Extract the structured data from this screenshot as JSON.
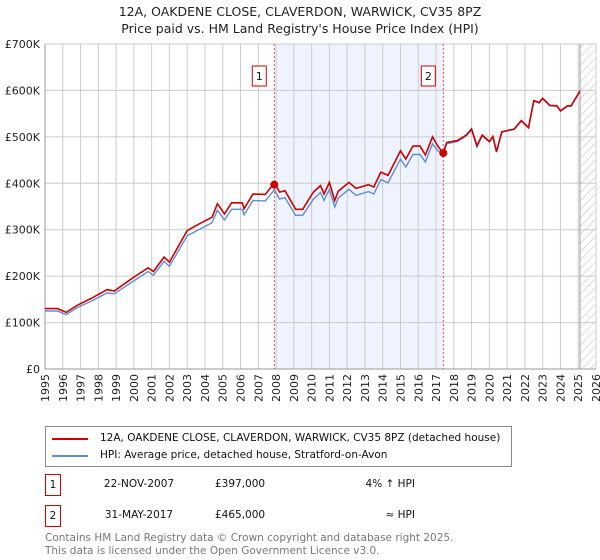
{
  "chart_data": {
    "type": "line",
    "title": "12A, OAKDENE CLOSE, CLAVERDON, WARWICK, CV35 8PZ",
    "subtitle": "Price paid vs. HM Land Registry's House Price Index (HPI)",
    "xlim": [
      1995,
      2026
    ],
    "ylim": [
      0,
      700000
    ],
    "y_ticks": [
      0,
      100000,
      200000,
      300000,
      400000,
      500000,
      600000,
      700000
    ],
    "y_tick_labels": [
      "£0",
      "£100K",
      "£200K",
      "£300K",
      "£400K",
      "£500K",
      "£600K",
      "£700K"
    ],
    "x_ticks": [
      1995,
      1996,
      1997,
      1998,
      1999,
      2000,
      2001,
      2002,
      2003,
      2004,
      2005,
      2006,
      2007,
      2008,
      2009,
      2010,
      2011,
      2012,
      2013,
      2014,
      2015,
      2016,
      2017,
      2018,
      2019,
      2020,
      2021,
      2022,
      2023,
      2024,
      2025,
      2026
    ],
    "grid": true,
    "shaded_period": [
      2007.9,
      2017.41
    ],
    "forecast_hatch_from": 2025.1,
    "colors": {
      "property": "#cc0000",
      "hpi": "#5b8fd4",
      "shade": "#eef3fd",
      "marker_line": "#e05050"
    },
    "x": [
      1995.0,
      1995.7,
      1996.2,
      1996.8,
      1997.6,
      1998.5,
      1998.9,
      2000.0,
      2000.8,
      2001.1,
      2001.7,
      2002.0,
      2003.0,
      2003.7,
      2004.4,
      2004.7,
      2005.1,
      2005.5,
      2006.1,
      2006.2,
      2006.7,
      2007.4,
      2007.9,
      2008.2,
      2008.5,
      2009.1,
      2009.5,
      2010.1,
      2010.5,
      2010.7,
      2011.0,
      2011.3,
      2011.5,
      2012.1,
      2012.5,
      2013.2,
      2013.5,
      2013.9,
      2014.3,
      2015.0,
      2015.3,
      2015.7,
      2016.1,
      2016.4,
      2016.8,
      2017.1,
      2017.4,
      2017.6,
      2018.2,
      2018.7,
      2019.0,
      2019.3,
      2019.6,
      2020.0,
      2020.2,
      2020.4,
      2020.7,
      2021.4,
      2021.8,
      2022.2,
      2022.5,
      2022.8,
      2023.0,
      2023.4,
      2023.8,
      2024.0,
      2024.4,
      2024.6,
      2025.1
    ],
    "series": [
      {
        "name": "12A, OAKDENE CLOSE, CLAVERDON, WARWICK, CV35 8PZ (detached house)",
        "values": [
          130,
          130,
          122,
          137,
          152,
          171,
          168,
          198,
          218,
          210,
          241,
          230,
          298,
          313,
          327,
          356,
          334,
          358,
          358,
          345,
          377,
          376,
          401,
          381,
          384,
          344,
          344,
          381,
          395,
          377,
          402,
          363,
          383,
          402,
          389,
          397,
          392,
          424,
          417,
          470,
          452,
          480,
          480,
          461,
          500,
          480,
          465,
          488,
          492,
          504,
          517,
          481,
          504,
          490,
          501,
          468,
          511,
          517,
          535,
          520,
          578,
          574,
          583,
          568,
          567,
          556,
          567,
          567,
          599
        ]
      },
      {
        "name": "HPI: Average price, detached house, Stratford-on-Avon",
        "values": [
          125,
          125,
          117,
          132,
          146,
          164,
          162,
          190,
          210,
          202,
          232,
          221,
          287,
          301,
          315,
          342,
          321,
          344,
          344,
          332,
          363,
          362,
          386,
          366,
          369,
          331,
          331,
          366,
          380,
          363,
          387,
          349,
          368,
          387,
          374,
          382,
          377,
          408,
          401,
          452,
          435,
          462,
          462,
          446,
          485,
          470,
          462,
          485,
          490,
          502,
          515,
          478,
          502,
          489,
          500,
          467,
          510,
          516,
          534,
          519,
          577,
          573,
          582,
          567,
          566,
          555,
          566,
          566,
          598
        ]
      }
    ],
    "legend": [
      "12A, OAKDENE CLOSE, CLAVERDON, WARWICK, CV35 8PZ (detached house)",
      "HPI: Average price, detached house, Stratford-on-Avon"
    ],
    "annotations": [
      {
        "label": "1",
        "x": 2007.9,
        "y": 397000
      },
      {
        "label": "2",
        "x": 2017.41,
        "y": 465000
      }
    ]
  },
  "sales": [
    {
      "num": "1",
      "date": "22-NOV-2007",
      "price": "£397,000",
      "hpi": "4% ↑ HPI"
    },
    {
      "num": "2",
      "date": "31-MAY-2017",
      "price": "£465,000",
      "hpi": "≈ HPI"
    }
  ],
  "footer": {
    "line1": "Contains HM Land Registry data © Crown copyright and database right 2025.",
    "line2": "This data is licensed under the Open Government Licence v3.0."
  }
}
